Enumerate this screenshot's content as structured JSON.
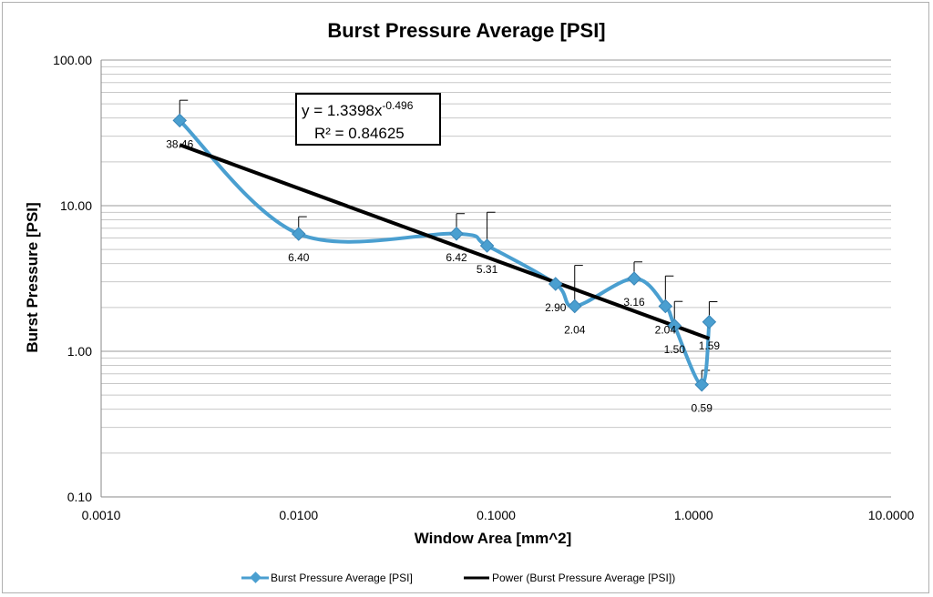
{
  "chart_data": {
    "type": "scatter",
    "title": "Burst Pressure Average [PSI]",
    "xlabel": "Window Area [mm^2]",
    "ylabel": "Burst Pressure [PSI]",
    "x_scale": "log",
    "y_scale": "log",
    "xlim": [
      0.001,
      10
    ],
    "ylim": [
      0.1,
      100
    ],
    "x_ticks": [
      "0.0010",
      "0.0100",
      "0.1000",
      "1.0000",
      "10.0000"
    ],
    "y_ticks": [
      "0.10",
      "1.00",
      "10.00",
      "100.00"
    ],
    "grid": "horizontal major and minor",
    "legend_position": "bottom",
    "series": [
      {
        "name": "Burst Pressure Average [PSI]",
        "color": "#4a9fd0",
        "marker": "diamond",
        "line": "smoothed",
        "points": [
          {
            "x": 0.0025,
            "y": 38.46,
            "label": "38.46",
            "err_plus": 14.5
          },
          {
            "x": 0.01,
            "y": 6.4,
            "label": "6.40",
            "err_plus": 2.0
          },
          {
            "x": 0.063,
            "y": 6.42,
            "label": "6.42",
            "err_plus": 2.4
          },
          {
            "x": 0.09,
            "y": 5.31,
            "label": "5.31",
            "err_plus": 3.7
          },
          {
            "x": 0.2,
            "y": 2.9,
            "label": "2.90",
            "err_plus": 0
          },
          {
            "x": 0.25,
            "y": 2.04,
            "label": "2.04",
            "err_plus": 1.85
          },
          {
            "x": 0.5,
            "y": 3.16,
            "label": "3.16",
            "err_plus": 0.95
          },
          {
            "x": 0.72,
            "y": 2.04,
            "label": "2.04",
            "err_plus": 1.25
          },
          {
            "x": 0.8,
            "y": 1.5,
            "label": "1.50",
            "err_plus": 0.7
          },
          {
            "x": 1.1,
            "y": 0.59,
            "label": "0.59",
            "err_plus": 0.15
          },
          {
            "x": 1.2,
            "y": 1.59,
            "label": "1.59",
            "err_plus": 0.6
          }
        ]
      }
    ],
    "trendline": {
      "name": "Power (Burst Pressure Average [PSI])",
      "color": "#000000",
      "type": "power",
      "coefficient": 1.3398,
      "exponent": -0.496,
      "x_range": [
        0.0025,
        1.2
      ],
      "equation_prefix": "y = 1.3398x",
      "equation_exponent": "-0.496",
      "r_squared": "R² = 0.84625"
    }
  }
}
